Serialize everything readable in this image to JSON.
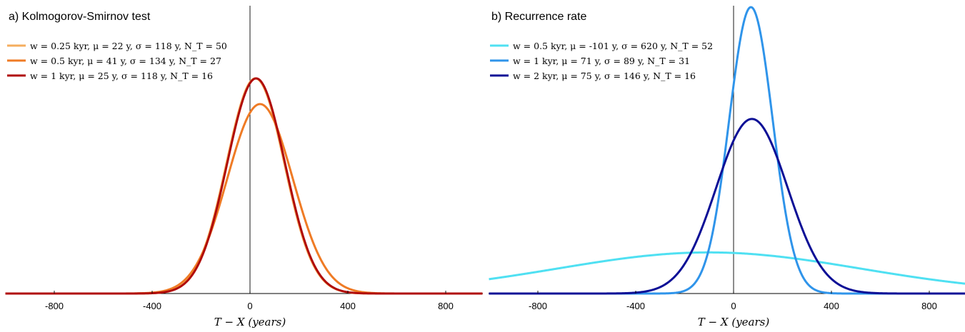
{
  "chart_data": [
    {
      "type": "line",
      "panel_label": "a)",
      "title": "Kolmogorov-Smirnov test",
      "xlabel": "T − X (years)",
      "xlim": [
        -1000,
        950
      ],
      "xticks": [
        -800,
        -400,
        0,
        400,
        800
      ],
      "xtick_labels": [
        "-800",
        "-400",
        "0",
        "400",
        "800"
      ],
      "legend_position": "top-left",
      "vertical_line_x": 0,
      "grid": false,
      "series": [
        {
          "name": "w = 0.25 kyr, μ = 22 y, σ = 118 y, N_T = 50",
          "w_kyr": 0.25,
          "mu": 22,
          "sigma": 118,
          "N_T": 50,
          "color": "#f5ad5e"
        },
        {
          "name": "w = 0.5 kyr, μ = 41 y, σ = 134 y, N_T = 27",
          "w_kyr": 0.5,
          "mu": 41,
          "sigma": 134,
          "N_T": 27,
          "color": "#ef7b25"
        },
        {
          "name": "w = 1 kyr, μ = 25 y, σ = 118 y, N_T = 16",
          "w_kyr": 1,
          "mu": 25,
          "sigma": 118,
          "N_T": 16,
          "color": "#b00a0a"
        }
      ]
    },
    {
      "type": "line",
      "panel_label": "b)",
      "title": "Recurrence rate",
      "xlabel": "T − X (years)",
      "xlim": [
        -1000,
        950
      ],
      "xticks": [
        -800,
        -400,
        0,
        400,
        800
      ],
      "xtick_labels": [
        "-800",
        "-400",
        "0",
        "400",
        "800"
      ],
      "legend_position": "top-left",
      "vertical_line_x": 0,
      "grid": false,
      "series": [
        {
          "name": "w = 0.5 kyr, μ = -101 y, σ = 620 y, N_T = 52",
          "w_kyr": 0.5,
          "mu": -101,
          "sigma": 620,
          "N_T": 52,
          "color": "#4fe0f2"
        },
        {
          "name": "w = 1 kyr, μ = 71 y, σ = 89 y, N_T = 31",
          "w_kyr": 1,
          "mu": 71,
          "sigma": 89,
          "N_T": 31,
          "color": "#2f94ea"
        },
        {
          "name": "w = 2 kyr, μ = 75 y, σ = 146 y, N_T = 16",
          "w_kyr": 2,
          "mu": 75,
          "sigma": 146,
          "N_T": 16,
          "color": "#0c0f96"
        }
      ]
    }
  ]
}
